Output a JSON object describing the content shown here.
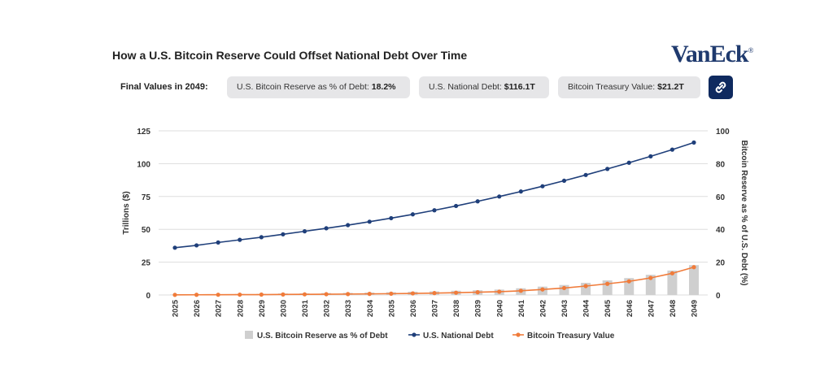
{
  "header": {
    "title": "How a U.S. Bitcoin Reserve Could Offset National Debt Over Time",
    "logo": "VanEck",
    "logo_mark": "®"
  },
  "final_values": {
    "label": "Final Values in 2049:",
    "items": [
      {
        "label": "U.S. Bitcoin Reserve as % of Debt: ",
        "value": "18.2%"
      },
      {
        "label": "U.S. National Debt: ",
        "value": "$116.1T"
      },
      {
        "label": "Bitcoin Treasury Value: ",
        "value": "$21.2T"
      }
    ],
    "link_icon": "link-icon"
  },
  "colors": {
    "debt": "#1f3f7a",
    "treasury": "#f07b3a",
    "bars": "#cfcfcf",
    "grid": "#dddddd",
    "button": "#0f2a5f"
  },
  "chart_data": {
    "type": "line",
    "title": "How a U.S. Bitcoin Reserve Could Offset National Debt Over Time",
    "ylabel": "Trillions ($)",
    "y2label": "Bitcoin Reserve as % of U.S. Debt (%)",
    "ylim": [
      0,
      125
    ],
    "y2lim": [
      0,
      100
    ],
    "yticks": [
      "0",
      "25",
      "50",
      "75",
      "100",
      "125"
    ],
    "y2ticks": [
      "0",
      "20",
      "40",
      "60",
      "80",
      "100"
    ],
    "x": [
      "2025",
      "2026",
      "2027",
      "2028",
      "2029",
      "2030",
      "2031",
      "2032",
      "2033",
      "2034",
      "2035",
      "2036",
      "2037",
      "2038",
      "2039",
      "2040",
      "2041",
      "2042",
      "2043",
      "2044",
      "2045",
      "2046",
      "2047",
      "2048",
      "2049"
    ],
    "series": [
      {
        "name": "U.S. Bitcoin Reserve as % of Debt",
        "type": "bar",
        "axis": "right",
        "values": [
          0.3,
          0.4,
          0.5,
          0.6,
          0.7,
          0.9,
          1.0,
          1.2,
          1.3,
          1.5,
          1.7,
          2.0,
          2.2,
          2.6,
          2.9,
          3.3,
          4.1,
          5.1,
          6.1,
          7.4,
          8.9,
          10.3,
          12.3,
          14.9,
          18.2
        ]
      },
      {
        "name": "U.S. National Debt",
        "type": "line",
        "axis": "left",
        "values": [
          36,
          37.8,
          40,
          42,
          44,
          46.2,
          48.5,
          50.8,
          53.2,
          55.8,
          58.5,
          61.4,
          64.5,
          67.8,
          71.3,
          75,
          78.8,
          82.8,
          87,
          91.4,
          96,
          100.7,
          105.6,
          110.7,
          116.1
        ]
      },
      {
        "name": "Bitcoin Treasury Value",
        "type": "line",
        "axis": "left",
        "values": [
          0.1,
          0.15,
          0.2,
          0.25,
          0.3,
          0.4,
          0.5,
          0.6,
          0.7,
          0.85,
          1.0,
          1.2,
          1.45,
          1.75,
          2.1,
          2.5,
          3.2,
          4.2,
          5.3,
          6.8,
          8.5,
          10.4,
          13,
          16.5,
          21.2
        ]
      }
    ],
    "legend": "bottom",
    "grid": true
  }
}
